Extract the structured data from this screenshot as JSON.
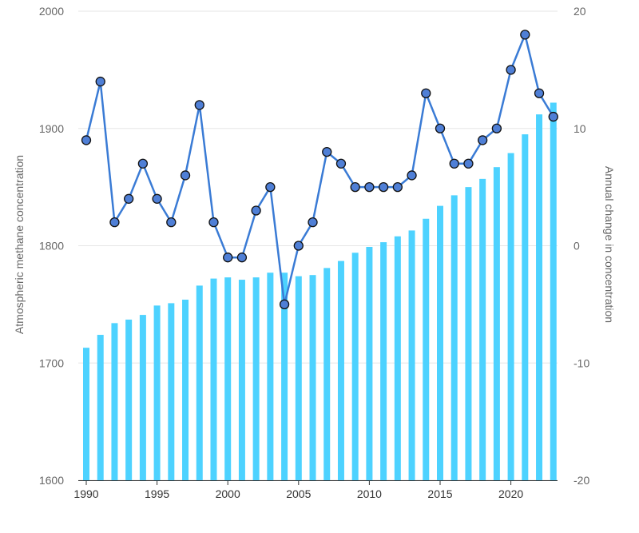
{
  "chart_data": {
    "type": "bar+line",
    "x": [
      1990,
      1991,
      1992,
      1993,
      1994,
      1995,
      1996,
      1997,
      1998,
      1999,
      2000,
      2001,
      2002,
      2003,
      2004,
      2005,
      2006,
      2007,
      2008,
      2009,
      2010,
      2011,
      2012,
      2013,
      2014,
      2015,
      2016,
      2017,
      2018,
      2019,
      2020,
      2021,
      2022,
      2023
    ],
    "x_ticks": [
      "1990",
      "1995",
      "2000",
      "2005",
      "2010",
      "2015",
      "2020"
    ],
    "series": [
      {
        "kind": "bar",
        "axis": "left",
        "color": "#4dd2ff",
        "values": [
          1713,
          1724,
          1734,
          1737,
          1741,
          1749,
          1751,
          1754,
          1766,
          1772,
          1773,
          1771,
          1773,
          1777,
          1777,
          1774,
          1775,
          1781,
          1787,
          1794,
          1799,
          1803,
          1808,
          1813,
          1823,
          1834,
          1843,
          1850,
          1857,
          1867,
          1879,
          1895,
          1912,
          1922
        ]
      },
      {
        "kind": "line",
        "axis": "right",
        "color": "#3a7bd5",
        "marker_color": "#4f7fd6",
        "values": [
          9,
          14,
          2,
          4,
          7,
          4,
          2,
          6,
          12,
          2,
          -1,
          -1,
          3,
          5,
          -5,
          0,
          2,
          8,
          7,
          5,
          5,
          5,
          5,
          6,
          13,
          10,
          7,
          7,
          9,
          10,
          15,
          18,
          13,
          11
        ]
      }
    ],
    "y_left": {
      "label": "Atmospheric methane concentration",
      "range": [
        1600,
        2000
      ],
      "ticks": [
        "1600",
        "1700",
        "1800",
        "1900",
        "2000"
      ]
    },
    "y_right": {
      "label": "Annual change in concentration",
      "range": [
        -20,
        20
      ],
      "ticks": [
        "-20",
        "-10",
        "0",
        "10",
        "20"
      ]
    },
    "grid": true
  }
}
